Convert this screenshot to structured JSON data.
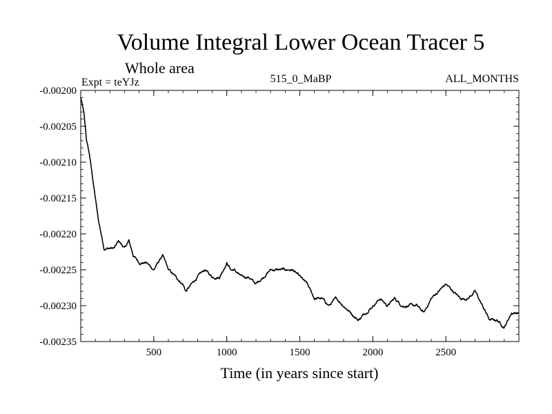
{
  "chart_data": {
    "type": "line",
    "title": "Volume Integral Lower Ocean Tracer 5",
    "subtitle": "Whole area",
    "annotations": {
      "left": "Expt = teYJz",
      "center": "515_0_MaBP",
      "right": "ALL_MONTHS"
    },
    "xlabel": "Time (in years since start)",
    "ylabel": "",
    "xlim": [
      0,
      3000
    ],
    "ylim": [
      -0.00235,
      -0.002
    ],
    "xticks": [
      500,
      1000,
      1500,
      2000,
      2500
    ],
    "xtick_labels": [
      "500",
      "1000",
      "1500",
      "2000",
      "2500"
    ],
    "yticks": [
      -0.002,
      -0.00205,
      -0.0021,
      -0.00215,
      -0.0022,
      -0.00225,
      -0.0023,
      -0.00235
    ],
    "ytick_labels": [
      "-0.00200",
      "-0.00205",
      "-0.00210",
      "-0.00215",
      "-0.00220",
      "-0.00225",
      "-0.00230",
      "-0.00235"
    ],
    "grid": false,
    "series": [
      {
        "name": "Lower Ocean Tracer 5",
        "x": [
          0,
          20,
          40,
          60,
          80,
          100,
          120,
          140,
          160,
          180,
          200,
          230,
          260,
          300,
          330,
          360,
          400,
          450,
          500,
          530,
          560,
          600,
          650,
          700,
          720,
          760,
          800,
          850,
          900,
          950,
          1000,
          1030,
          1050,
          1100,
          1150,
          1200,
          1250,
          1300,
          1350,
          1400,
          1450,
          1500,
          1550,
          1600,
          1650,
          1700,
          1750,
          1800,
          1850,
          1900,
          1950,
          2000,
          2050,
          2100,
          2150,
          2200,
          2250,
          2300,
          2350,
          2400,
          2450,
          2500,
          2550,
          2600,
          2650,
          2700,
          2750,
          2800,
          2850,
          2900,
          2950,
          3000
        ],
        "values": [
          -0.00201,
          -0.00203,
          -0.00207,
          -0.00209,
          -0.00212,
          -0.00215,
          -0.00218,
          -0.0022,
          -0.00222,
          -0.00222,
          -0.00222,
          -0.00222,
          -0.00221,
          -0.00222,
          -0.00221,
          -0.00223,
          -0.00224,
          -0.00224,
          -0.00225,
          -0.00224,
          -0.00223,
          -0.00225,
          -0.00226,
          -0.00227,
          -0.00228,
          -0.00227,
          -0.00226,
          -0.00225,
          -0.00226,
          -0.00226,
          -0.00224,
          -0.00225,
          -0.00225,
          -0.00226,
          -0.00226,
          -0.00227,
          -0.00226,
          -0.00225,
          -0.00225,
          -0.00225,
          -0.00225,
          -0.00226,
          -0.00227,
          -0.00229,
          -0.00229,
          -0.0023,
          -0.00229,
          -0.0023,
          -0.00231,
          -0.00232,
          -0.00231,
          -0.0023,
          -0.00229,
          -0.0023,
          -0.00229,
          -0.0023,
          -0.0023,
          -0.0023,
          -0.00231,
          -0.00229,
          -0.00228,
          -0.00227,
          -0.00228,
          -0.00229,
          -0.00229,
          -0.00228,
          -0.0023,
          -0.00232,
          -0.00232,
          -0.00233,
          -0.00231,
          -0.00231
        ]
      }
    ]
  }
}
